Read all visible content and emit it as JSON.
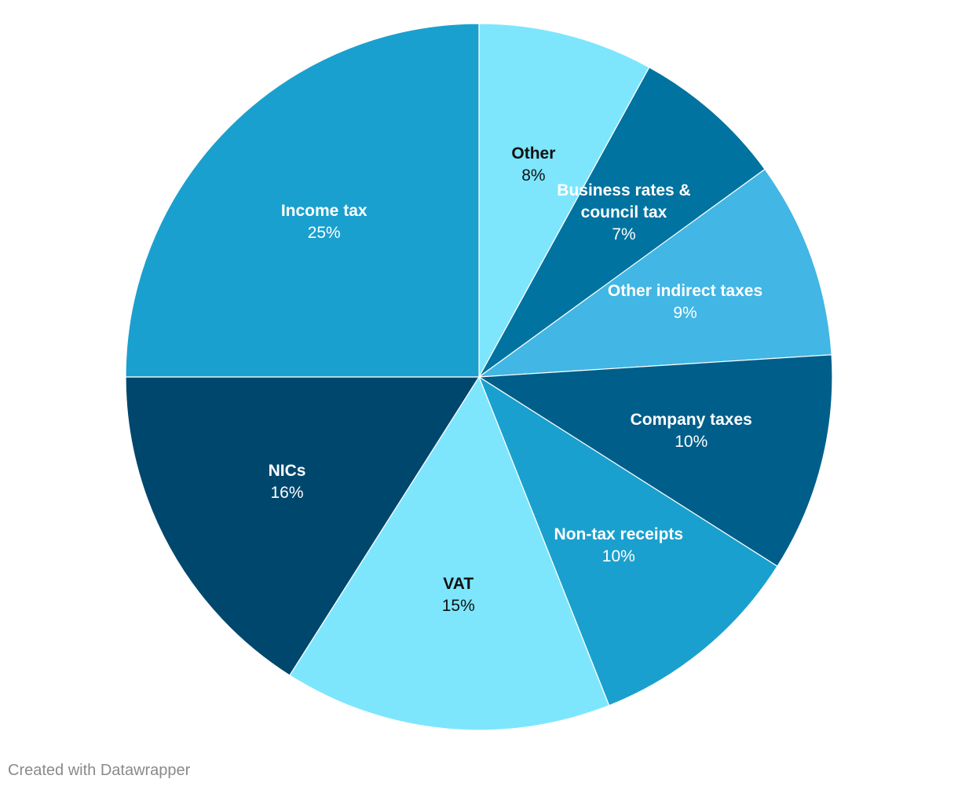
{
  "chart_data": {
    "type": "pie",
    "categories": [
      "Other",
      "Business rates & council tax",
      "Other indirect taxes",
      "Company taxes",
      "Non-tax receipts",
      "VAT",
      "NICs",
      "Income tax"
    ],
    "values": [
      8,
      7,
      9,
      10,
      10,
      15,
      16,
      25
    ],
    "value_labels": [
      "8%",
      "7%",
      "9%",
      "10%",
      "10%",
      "15%",
      "16%",
      "25%"
    ],
    "colors": [
      "#7de6fd",
      "#0073a0",
      "#42b6e4",
      "#005e8a",
      "#1aa0ce",
      "#7de6fd",
      "#00476d",
      "#1aa0ce"
    ],
    "credit": "Created with Datawrapper"
  }
}
